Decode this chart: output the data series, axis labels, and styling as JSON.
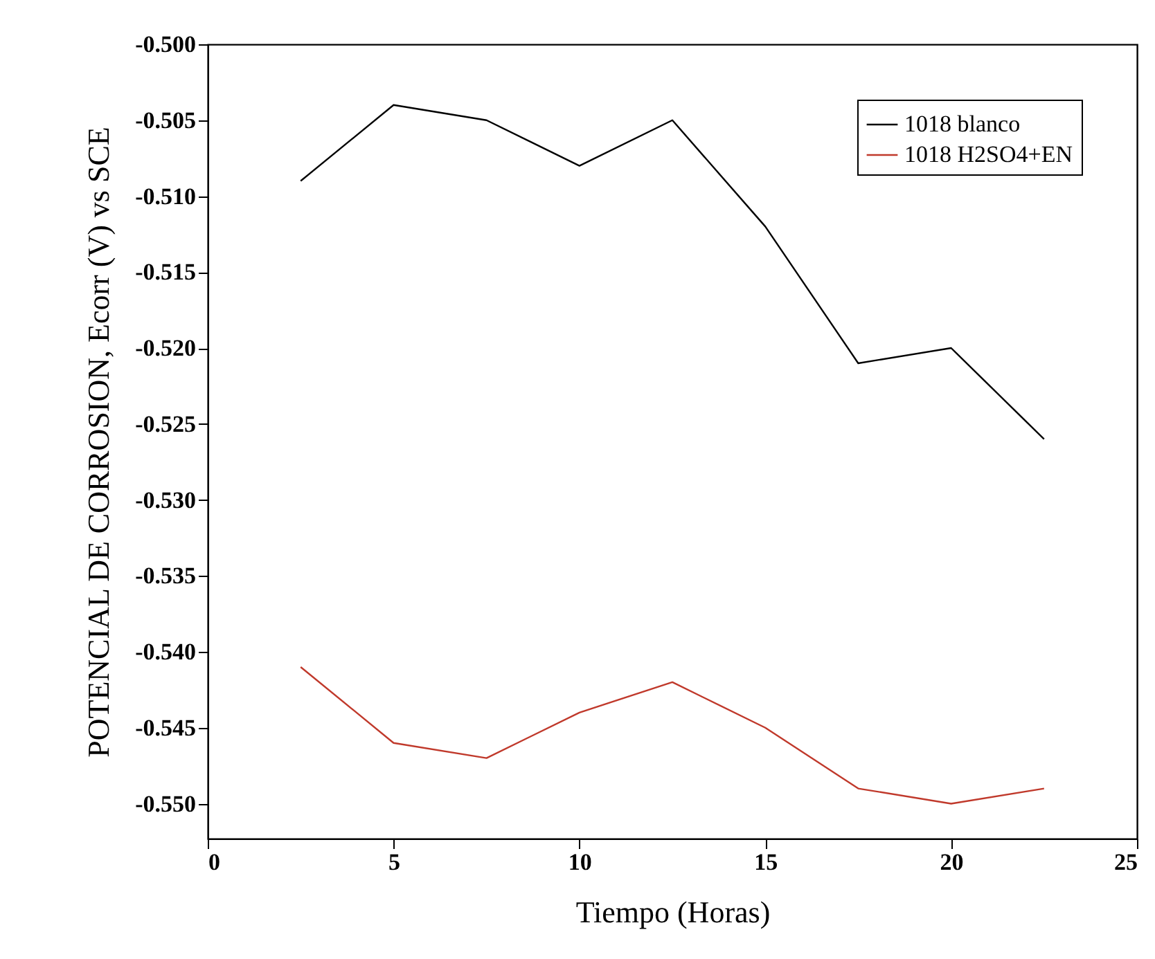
{
  "chart_data": {
    "type": "line",
    "xlabel": "Tiempo (Horas)",
    "ylabel": "POTENCIAL DE CORROSION, Ecorr (V) vs SCE",
    "x": [
      2.5,
      5,
      7.5,
      10,
      12.5,
      15,
      17.5,
      20,
      22.5
    ],
    "series": [
      {
        "name": "1018 blanco",
        "color": "#000000",
        "values": [
          -0.509,
          -0.504,
          -0.505,
          -0.508,
          -0.505,
          -0.512,
          -0.521,
          -0.52,
          -0.526
        ]
      },
      {
        "name": "1018 H2SO4+EN",
        "color": "#c0392b",
        "values": [
          -0.541,
          -0.546,
          -0.547,
          -0.544,
          -0.542,
          -0.545,
          -0.549,
          -0.55,
          -0.549
        ]
      }
    ],
    "xlim": [
      0,
      25
    ],
    "xticks": [
      0,
      5,
      10,
      15,
      20,
      25
    ],
    "ylim": [
      -0.5523,
      -0.5
    ],
    "yticks": [
      {
        "value": -0.55,
        "label": "-0.550"
      },
      {
        "value": -0.545,
        "label": "-0.545"
      },
      {
        "value": -0.54,
        "label": "-0.540"
      },
      {
        "value": -0.535,
        "label": "-0.535"
      },
      {
        "value": -0.53,
        "label": "-0.530"
      },
      {
        "value": -0.525,
        "label": "-0.525"
      },
      {
        "value": -0.52,
        "label": "-0.520"
      },
      {
        "value": -0.515,
        "label": "-0.515"
      },
      {
        "value": -0.51,
        "label": "-0.510"
      },
      {
        "value": -0.505,
        "label": "-0.505"
      },
      {
        "value": -0.5,
        "label": "-0.500"
      }
    ],
    "legend": "top right",
    "grid": false,
    "line_style": "solid",
    "marker": "none"
  }
}
